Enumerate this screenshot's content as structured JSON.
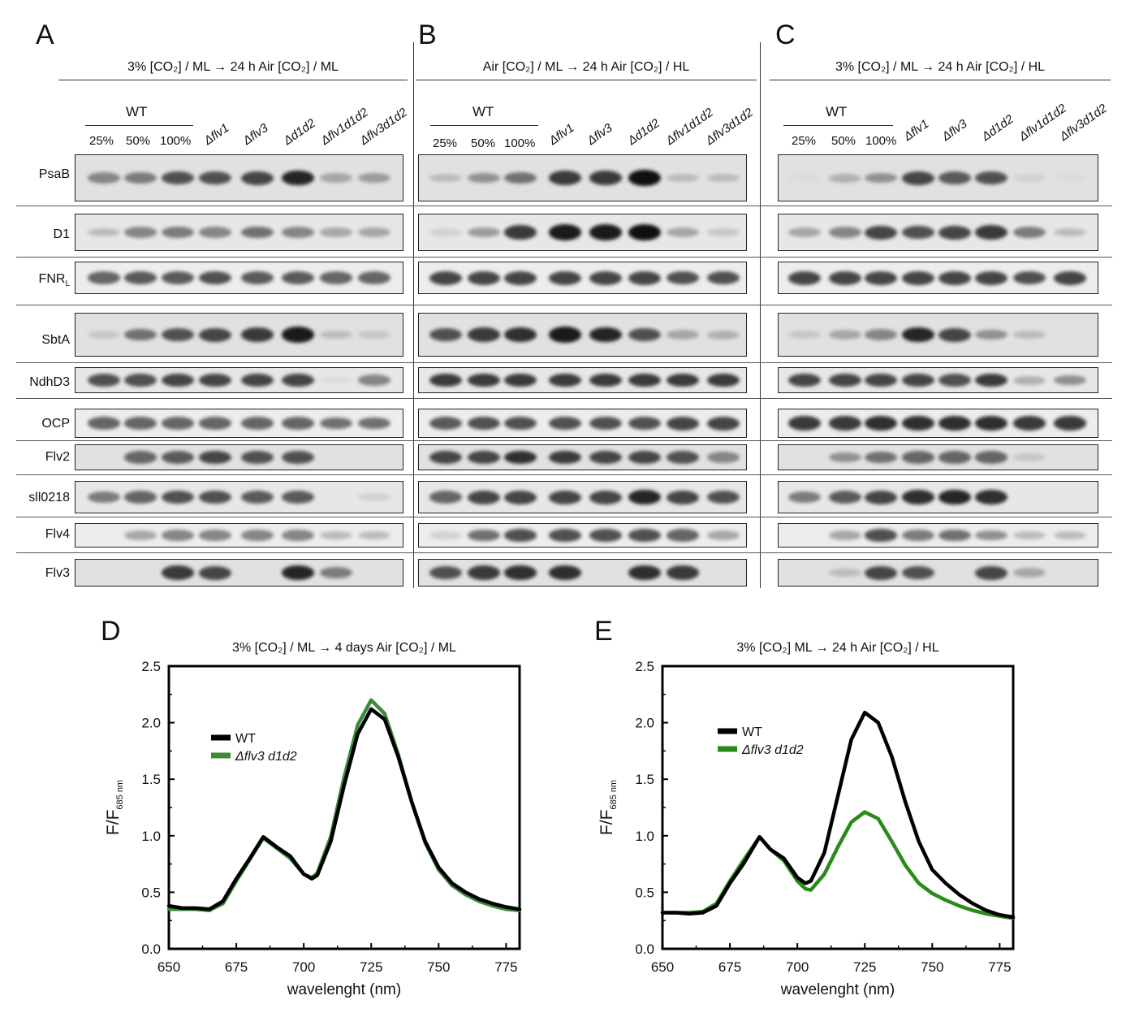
{
  "panels": {
    "A": {
      "letter": "A",
      "condition": "3% [CO₂] / ML → 24 h Air [CO₂] / ML"
    },
    "B": {
      "letter": "B",
      "condition": "Air [CO₂] / ML → 24 h Air [CO₂] / HL"
    },
    "C": {
      "letter": "C",
      "condition": "3% [CO₂] / ML → 24 h Air [CO₂] / HL"
    },
    "D": {
      "letter": "D"
    },
    "E": {
      "letter": "E"
    }
  },
  "lanes": {
    "wt_label": "WT",
    "percentages": [
      "25%",
      "50%",
      "100%"
    ],
    "mutants": [
      "Δflv1",
      "Δflv3",
      "Δd1d2",
      "Δflv1d1d2",
      "Δflv3d1d2"
    ]
  },
  "proteins": [
    "PsaB",
    "D1",
    "FNR",
    "SbtA",
    "NdhD3",
    "OCP",
    "Flv2",
    "sll0218",
    "Flv4",
    "Flv3"
  ],
  "fnr_subscript": "L",
  "blot_intensities": {
    "A": [
      [
        0.45,
        0.5,
        0.7,
        0.7,
        0.75,
        0.9,
        0.3,
        0.35
      ],
      [
        0.2,
        0.45,
        0.5,
        0.45,
        0.55,
        0.45,
        0.3,
        0.3
      ],
      [
        0.6,
        0.65,
        0.65,
        0.7,
        0.65,
        0.65,
        0.6,
        0.6
      ],
      [
        0.15,
        0.55,
        0.7,
        0.75,
        0.8,
        0.95,
        0.2,
        0.15
      ],
      [
        0.7,
        0.7,
        0.75,
        0.75,
        0.75,
        0.75,
        0.05,
        0.45
      ],
      [
        0.6,
        0.6,
        0.6,
        0.6,
        0.6,
        0.6,
        0.55,
        0.55
      ],
      [
        0.0,
        0.6,
        0.65,
        0.75,
        0.7,
        0.7,
        0.0,
        0.0
      ],
      [
        0.5,
        0.6,
        0.7,
        0.7,
        0.65,
        0.65,
        0.0,
        0.1
      ],
      [
        0.0,
        0.3,
        0.45,
        0.45,
        0.45,
        0.45,
        0.2,
        0.2
      ],
      [
        0.0,
        0.0,
        0.8,
        0.75,
        0.0,
        0.9,
        0.5,
        0.0
      ]
    ],
    "B": [
      [
        0.2,
        0.4,
        0.55,
        0.8,
        0.8,
        1.0,
        0.2,
        0.2
      ],
      [
        0.1,
        0.35,
        0.8,
        0.95,
        0.95,
        1.0,
        0.3,
        0.15
      ],
      [
        0.75,
        0.75,
        0.75,
        0.75,
        0.75,
        0.75,
        0.7,
        0.7
      ],
      [
        0.7,
        0.8,
        0.85,
        0.95,
        0.9,
        0.7,
        0.3,
        0.25
      ],
      [
        0.8,
        0.8,
        0.8,
        0.8,
        0.8,
        0.8,
        0.8,
        0.8
      ],
      [
        0.65,
        0.7,
        0.7,
        0.7,
        0.7,
        0.7,
        0.75,
        0.75
      ],
      [
        0.75,
        0.75,
        0.85,
        0.8,
        0.75,
        0.75,
        0.7,
        0.45
      ],
      [
        0.6,
        0.75,
        0.75,
        0.75,
        0.75,
        0.9,
        0.75,
        0.7
      ],
      [
        0.1,
        0.55,
        0.7,
        0.7,
        0.7,
        0.7,
        0.6,
        0.3
      ],
      [
        0.7,
        0.8,
        0.85,
        0.85,
        0.0,
        0.85,
        0.8,
        0.0
      ]
    ],
    "C": [
      [
        0.05,
        0.25,
        0.4,
        0.75,
        0.65,
        0.7,
        0.1,
        0.05
      ],
      [
        0.3,
        0.45,
        0.75,
        0.7,
        0.75,
        0.8,
        0.5,
        0.2
      ],
      [
        0.75,
        0.75,
        0.75,
        0.75,
        0.75,
        0.75,
        0.7,
        0.75
      ],
      [
        0.15,
        0.3,
        0.45,
        0.9,
        0.75,
        0.4,
        0.2,
        0.0
      ],
      [
        0.75,
        0.75,
        0.75,
        0.75,
        0.7,
        0.8,
        0.25,
        0.4
      ],
      [
        0.8,
        0.8,
        0.85,
        0.85,
        0.85,
        0.85,
        0.8,
        0.8
      ],
      [
        0.0,
        0.4,
        0.55,
        0.6,
        0.6,
        0.6,
        0.15,
        0.0
      ],
      [
        0.5,
        0.65,
        0.75,
        0.85,
        0.9,
        0.85,
        0.0,
        0.0
      ],
      [
        0.0,
        0.3,
        0.7,
        0.5,
        0.55,
        0.4,
        0.2,
        0.2
      ],
      [
        0.0,
        0.2,
        0.75,
        0.7,
        0.0,
        0.75,
        0.3,
        0.0
      ]
    ]
  },
  "chart_data": [
    {
      "type": "line",
      "panel": "D",
      "title": "3% [CO₂] / ML → 4 days Air [CO₂] / ML",
      "xlabel": "wavelenght (nm)",
      "ylabel": "F/F",
      "ylabel_sub": "685 nm",
      "xlim": [
        650,
        780
      ],
      "ylim": [
        0,
        2.5
      ],
      "xticks": [
        "650",
        "675",
        "700",
        "725",
        "750",
        "775"
      ],
      "yticks": [
        "0.0",
        "0.5",
        "1.0",
        "1.5",
        "2.0",
        "2.5"
      ],
      "legend": [
        "WT",
        "Δflv3 d1d2"
      ],
      "series": [
        {
          "name": "WT",
          "color": "#000000",
          "x": [
            650,
            655,
            660,
            665,
            670,
            675,
            680,
            685,
            690,
            695,
            700,
            703,
            705,
            710,
            715,
            720,
            725,
            730,
            735,
            740,
            745,
            750,
            755,
            760,
            765,
            770,
            775,
            780
          ],
          "values": [
            0.38,
            0.36,
            0.36,
            0.35,
            0.42,
            0.62,
            0.8,
            0.99,
            0.9,
            0.82,
            0.66,
            0.62,
            0.65,
            0.95,
            1.45,
            1.9,
            2.12,
            2.03,
            1.7,
            1.3,
            0.95,
            0.72,
            0.58,
            0.5,
            0.44,
            0.4,
            0.37,
            0.35
          ]
        },
        {
          "name": "Δflv3 d1d2",
          "color": "#3a8a3a",
          "x": [
            650,
            655,
            660,
            665,
            670,
            675,
            680,
            685,
            690,
            695,
            700,
            703,
            705,
            710,
            715,
            720,
            725,
            730,
            735,
            740,
            745,
            750,
            755,
            760,
            765,
            770,
            775,
            780
          ],
          "values": [
            0.35,
            0.35,
            0.35,
            0.34,
            0.4,
            0.6,
            0.79,
            0.98,
            0.89,
            0.8,
            0.66,
            0.63,
            0.67,
            0.99,
            1.52,
            1.98,
            2.2,
            2.08,
            1.72,
            1.3,
            0.94,
            0.7,
            0.56,
            0.48,
            0.42,
            0.38,
            0.35,
            0.34
          ]
        }
      ]
    },
    {
      "type": "line",
      "panel": "E",
      "title": "3% [CO₂] ML → 24 h Air [CO₂] / HL",
      "xlabel": "wavelenght (nm)",
      "ylabel": "F/F",
      "ylabel_sub": "685 nm",
      "xlim": [
        650,
        780
      ],
      "ylim": [
        0,
        2.5
      ],
      "xticks": [
        "650",
        "675",
        "700",
        "725",
        "750",
        "775"
      ],
      "yticks": [
        "0.0",
        "0.5",
        "1.0",
        "1.5",
        "2.0",
        "2.5"
      ],
      "legend": [
        "WT",
        "Δflv3 d1d2"
      ],
      "series": [
        {
          "name": "WT",
          "color": "#000000",
          "x": [
            650,
            655,
            660,
            665,
            670,
            675,
            680,
            686,
            690,
            695,
            700,
            703,
            705,
            710,
            715,
            720,
            725,
            730,
            735,
            740,
            745,
            750,
            755,
            760,
            765,
            770,
            775,
            780
          ],
          "values": [
            0.32,
            0.32,
            0.31,
            0.32,
            0.38,
            0.58,
            0.75,
            0.99,
            0.88,
            0.8,
            0.63,
            0.58,
            0.6,
            0.85,
            1.35,
            1.85,
            2.09,
            2.0,
            1.7,
            1.3,
            0.95,
            0.7,
            0.58,
            0.48,
            0.4,
            0.34,
            0.3,
            0.28
          ]
        },
        {
          "name": "Δflv3 d1d2",
          "color": "#2a8a1a",
          "x": [
            650,
            655,
            660,
            665,
            670,
            675,
            680,
            686,
            690,
            695,
            700,
            703,
            705,
            710,
            715,
            720,
            725,
            730,
            735,
            740,
            745,
            750,
            755,
            760,
            765,
            770,
            775,
            780
          ],
          "values": [
            0.32,
            0.32,
            0.32,
            0.33,
            0.4,
            0.6,
            0.78,
            0.99,
            0.88,
            0.78,
            0.6,
            0.53,
            0.52,
            0.66,
            0.9,
            1.12,
            1.21,
            1.15,
            0.95,
            0.74,
            0.58,
            0.49,
            0.43,
            0.38,
            0.34,
            0.31,
            0.29,
            0.27
          ]
        }
      ]
    }
  ]
}
